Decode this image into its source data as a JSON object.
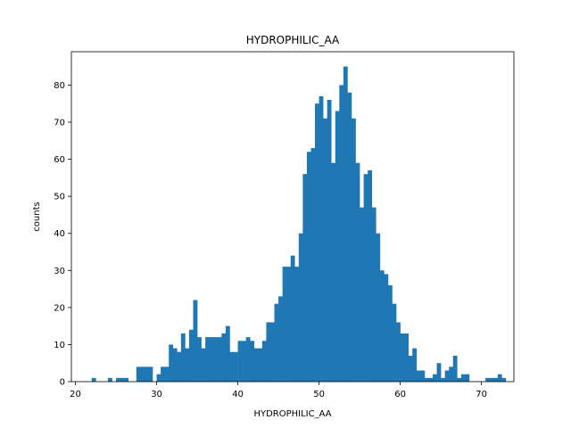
{
  "chart_data": {
    "type": "bar",
    "title": "HYDROPHILIC_AA",
    "xlabel": "HYDROPHILIC_AA",
    "ylabel": "counts",
    "xlim": [
      19.5,
      74.0
    ],
    "ylim": [
      0,
      89
    ],
    "xticks": [
      20,
      30,
      40,
      50,
      60,
      70
    ],
    "yticks": [
      0,
      10,
      20,
      30,
      40,
      50,
      60,
      70,
      80
    ],
    "bar_color": "#1f77b4",
    "grid": false,
    "bin_start": 22.0,
    "bin_width": 0.5,
    "counts": [
      1,
      0,
      0,
      0,
      1,
      0,
      1,
      1,
      1,
      0,
      0,
      4,
      4,
      4,
      4,
      0,
      2,
      4,
      4,
      10,
      9,
      8,
      13,
      9,
      14,
      22,
      12,
      9,
      12,
      12,
      12,
      12,
      13,
      15,
      8,
      8,
      11,
      11,
      12,
      11,
      9,
      9,
      11,
      16,
      16,
      21,
      23,
      31,
      31,
      34,
      31,
      40,
      56,
      62,
      63,
      75,
      77,
      71,
      76,
      59,
      73,
      80,
      85,
      78,
      71,
      59,
      47,
      56,
      57,
      47,
      40,
      30,
      29,
      26,
      21,
      16,
      13,
      13,
      7,
      9,
      3,
      3,
      1,
      1,
      2,
      5,
      1,
      3,
      4,
      7,
      1,
      2,
      2,
      0,
      0,
      0,
      0,
      1,
      1,
      1,
      2,
      1
    ]
  }
}
